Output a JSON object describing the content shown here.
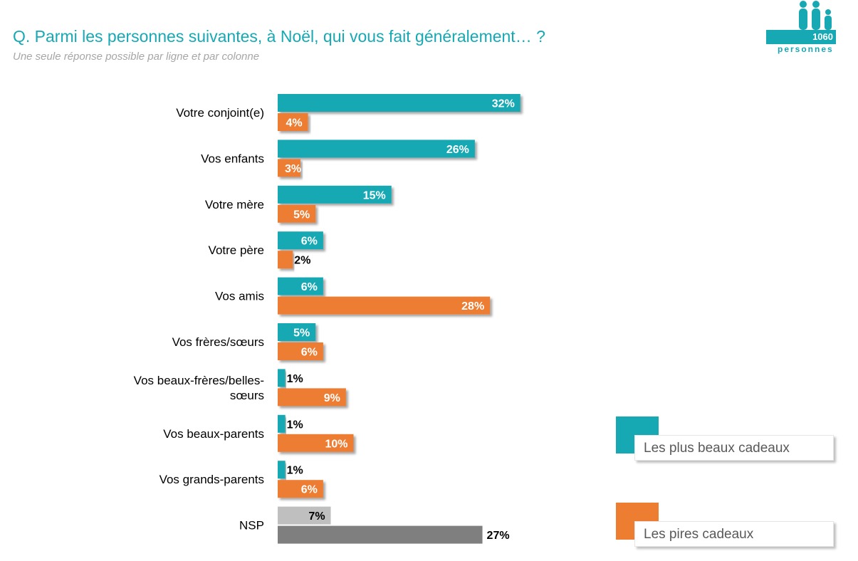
{
  "header": {
    "title": "Q. Parmi les personnes suivantes, à Noël, qui vous fait généralement… ?",
    "subtitle": "Une seule réponse possible par ligne et par colonne"
  },
  "sample": {
    "count": "1060",
    "unit": "personnes"
  },
  "colors": {
    "best": "#16a9b4",
    "worst": "#ed7d31",
    "nsp_best": "#bfbfbf",
    "nsp_worst": "#7f7f7f",
    "brand": "#16a9b4"
  },
  "legend": {
    "best_label": "Les plus beaux cadeaux",
    "worst_label": "Les pires cadeaux",
    "placement": "right"
  },
  "chart_data": {
    "type": "bar",
    "orientation": "horizontal",
    "title": "",
    "xlabel": "",
    "ylabel": "",
    "xlim": [
      0,
      32
    ],
    "grid": false,
    "value_suffix": "%",
    "categories": [
      [
        "Votre conjoint(e)"
      ],
      [
        "Vos enfants"
      ],
      [
        "Votre mère"
      ],
      [
        "Votre père"
      ],
      [
        "Vos amis"
      ],
      [
        "Vos frères/sœurs"
      ],
      [
        "Vos beaux-frères/belles-",
        "sœurs"
      ],
      [
        "Vos beaux-parents"
      ],
      [
        "Vos grands-parents"
      ],
      [
        "NSP"
      ]
    ],
    "series": [
      {
        "name": "Les plus beaux cadeaux",
        "values": [
          32,
          26,
          15,
          6,
          6,
          5,
          1,
          1,
          1,
          7
        ]
      },
      {
        "name": "Les pires cadeaux",
        "values": [
          4,
          3,
          5,
          2,
          28,
          6,
          9,
          10,
          6,
          27
        ]
      }
    ]
  }
}
